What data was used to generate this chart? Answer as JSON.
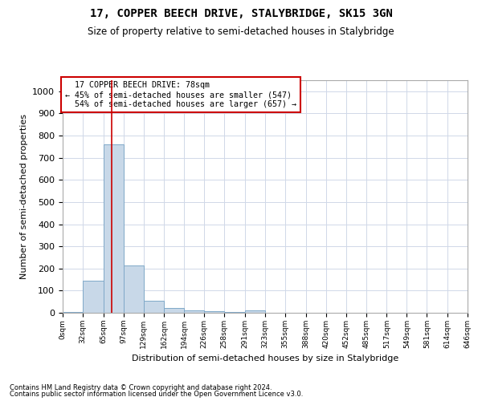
{
  "title": "17, COPPER BEECH DRIVE, STALYBRIDGE, SK15 3GN",
  "subtitle": "Size of property relative to semi-detached houses in Stalybridge",
  "xlabel": "Distribution of semi-detached houses by size in Stalybridge",
  "ylabel": "Number of semi-detached properties",
  "bin_edges": [
    0,
    32,
    65,
    97,
    129,
    162,
    194,
    226,
    258,
    291,
    323,
    355,
    388,
    420,
    452,
    485,
    517,
    549,
    581,
    614,
    646
  ],
  "bin_labels": [
    "0sqm",
    "32sqm",
    "65sqm",
    "97sqm",
    "129sqm",
    "162sqm",
    "194sqm",
    "226sqm",
    "258sqm",
    "291sqm",
    "323sqm",
    "355sqm",
    "388sqm",
    "420sqm",
    "452sqm",
    "485sqm",
    "517sqm",
    "549sqm",
    "581sqm",
    "614sqm",
    "646sqm"
  ],
  "bar_heights": [
    5,
    145,
    760,
    215,
    55,
    20,
    12,
    8,
    5,
    12,
    0,
    0,
    0,
    0,
    0,
    0,
    0,
    0,
    0,
    0
  ],
  "bar_color": "#c8d8e8",
  "bar_edge_color": "#7fa8c8",
  "property_size": 78,
  "property_label": "17 COPPER BEECH DRIVE: 78sqm",
  "pct_smaller": 45,
  "count_smaller": 547,
  "pct_larger": 54,
  "count_larger": 657,
  "vline_color": "#cc0000",
  "annotation_box_color": "#cc0000",
  "ylim": [
    0,
    1050
  ],
  "yticks": [
    0,
    100,
    200,
    300,
    400,
    500,
    600,
    700,
    800,
    900,
    1000
  ],
  "footer_line1": "Contains HM Land Registry data © Crown copyright and database right 2024.",
  "footer_line2": "Contains public sector information licensed under the Open Government Licence v3.0.",
  "bg_color": "#ffffff",
  "grid_color": "#d0d8e8"
}
